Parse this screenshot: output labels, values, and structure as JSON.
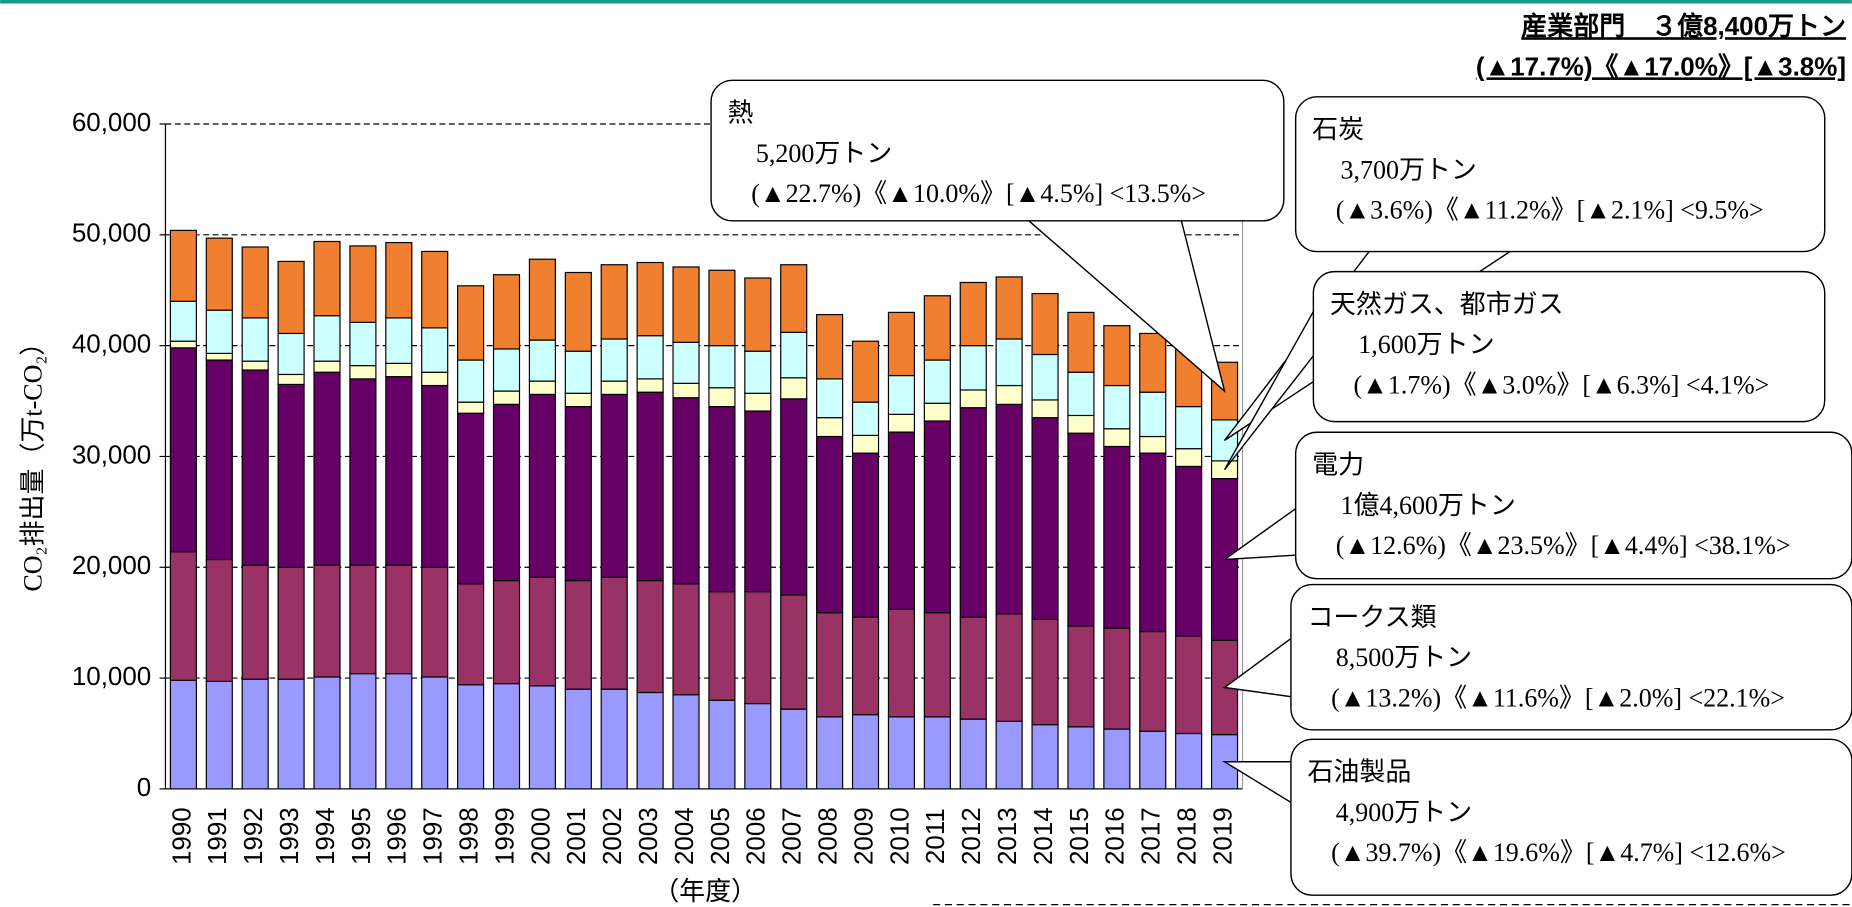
{
  "chart_data": {
    "type": "stacked-bar",
    "title": "産業部門　３億8,400万トン",
    "subtitle": "(▲17.7%)《▲17.0%》[▲3.8%]",
    "y_label": "CO₂排出量（万t-CO₂）",
    "x_label": "（年度）",
    "categories": [
      "1990",
      "1991",
      "1992",
      "1993",
      "1994",
      "1995",
      "1996",
      "1997",
      "1998",
      "1999",
      "2000",
      "2001",
      "2002",
      "2003",
      "2004",
      "2005",
      "2006",
      "2007",
      "2008",
      "2009",
      "2010",
      "2011",
      "2012",
      "2013",
      "2014",
      "2015",
      "2016",
      "2017",
      "2018",
      "2019"
    ],
    "series": [
      {
        "name": "石油製品",
        "color": "#9999ff",
        "values": [
          9800,
          9700,
          9900,
          9900,
          10100,
          10400,
          10400,
          10100,
          9400,
          9500,
          9300,
          9000,
          9000,
          8700,
          8500,
          8000,
          7700,
          7200,
          6500,
          6700,
          6500,
          6500,
          6300,
          6100,
          5800,
          5600,
          5400,
          5200,
          5000,
          4900
        ]
      },
      {
        "name": "コークス類",
        "color": "#993366",
        "values": [
          11600,
          11000,
          10300,
          10100,
          10100,
          9800,
          9800,
          9900,
          9100,
          9300,
          9800,
          9800,
          10100,
          10100,
          10000,
          9800,
          10100,
          10300,
          9400,
          8800,
          9700,
          9400,
          9200,
          9700,
          9500,
          9100,
          9100,
          9000,
          8800,
          8500
        ]
      },
      {
        "name": "電力",
        "color": "#660066",
        "values": [
          18400,
          18000,
          17600,
          16500,
          17400,
          16800,
          17000,
          16400,
          15400,
          15900,
          16500,
          15700,
          16500,
          17000,
          16800,
          16700,
          16300,
          17700,
          15900,
          14800,
          16000,
          17300,
          18900,
          18900,
          18200,
          17400,
          16400,
          16100,
          15300,
          14600
        ]
      },
      {
        "name": "天然ガス、都市ガス",
        "color": "#ffffcc",
        "values": [
          600,
          600,
          800,
          900,
          1000,
          1200,
          1200,
          1200,
          1000,
          1200,
          1200,
          1200,
          1200,
          1200,
          1300,
          1700,
          1600,
          1900,
          1700,
          1600,
          1600,
          1600,
          1600,
          1700,
          1600,
          1600,
          1600,
          1500,
          1600,
          1600
        ]
      },
      {
        "name": "石炭",
        "color": "#ccffff",
        "values": [
          3600,
          3900,
          3900,
          3700,
          4100,
          3900,
          4100,
          4000,
          3800,
          3800,
          3700,
          3800,
          3800,
          3900,
          3700,
          3800,
          3800,
          4100,
          3500,
          3000,
          3500,
          3900,
          4000,
          4200,
          4100,
          3900,
          3900,
          4000,
          3800,
          3700
        ]
      },
      {
        "name": "熱",
        "color": "#f08030",
        "values": [
          6400,
          6500,
          6400,
          6500,
          6700,
          6900,
          6800,
          6900,
          6700,
          6700,
          7300,
          7100,
          6700,
          6600,
          6800,
          6800,
          6600,
          6100,
          5800,
          5500,
          5700,
          5800,
          5700,
          5600,
          5500,
          5400,
          5400,
          5300,
          5400,
          5200
        ]
      }
    ],
    "ylim": [
      0,
      60000
    ],
    "yticks": [
      0,
      {
        "value": 10000,
        "label": "10,000"
      },
      {
        "value": 20000,
        "label": "20,000"
      },
      {
        "value": 30000,
        "label": "30,000"
      },
      {
        "value": 40000,
        "label": "40,000"
      },
      {
        "value": 50000,
        "label": "50,000"
      },
      {
        "value": 60000,
        "label": "60,000"
      }
    ],
    "grid": true,
    "annotations": [
      {
        "label": "熱",
        "amount": "5,200万トン",
        "change": "(▲22.7%)《▲10.0%》[▲4.5%] <13.5%>"
      },
      {
        "label": "石炭",
        "amount": "3,700万トン",
        "change": "(▲3.6%)《▲11.2%》[▲2.1%] <9.5%>"
      },
      {
        "label": "天然ガス、都市ガス",
        "amount": "1,600万トン",
        "change": "(▲1.7%)《▲3.0%》[▲6.3%] <4.1%>"
      },
      {
        "label": "電力",
        "amount": "1億4,600万トン",
        "change": "(▲12.6%)《▲23.5%》[▲4.4%] <38.1%>"
      },
      {
        "label": "コークス類",
        "amount": "8,500万トン",
        "change": "(▲13.2%)《▲11.6%》[▲2.0%] <22.1%>"
      },
      {
        "label": "石油製品",
        "amount": "4,900万トン",
        "change": "(▲39.7%)《▲19.6%》[▲4.7%] <12.6%>"
      }
    ]
  }
}
